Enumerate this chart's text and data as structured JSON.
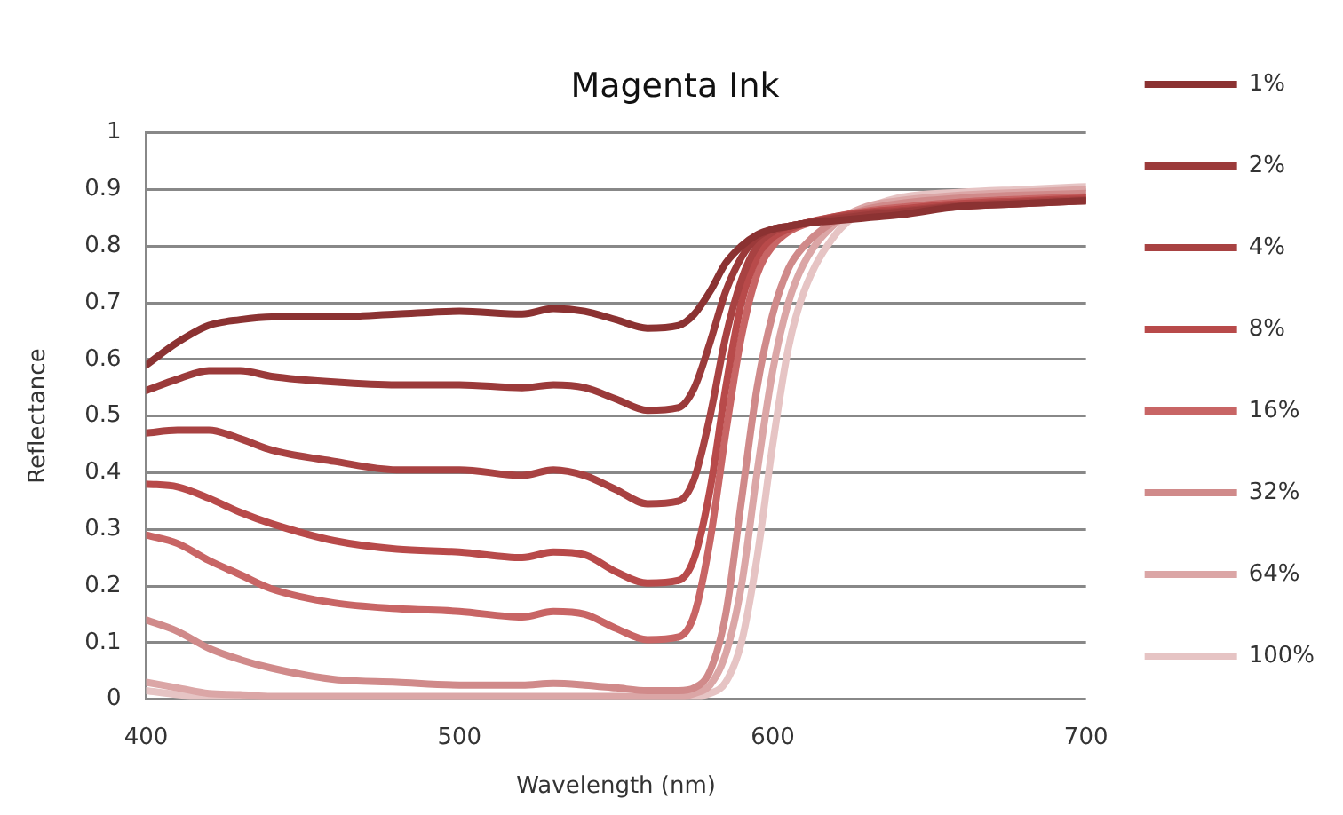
{
  "chart_data": {
    "type": "line",
    "title": "Magenta Ink",
    "xlabel": "Wavelength (nm)",
    "ylabel": "Reflectance",
    "x": [
      400,
      410,
      420,
      430,
      440,
      460,
      480,
      500,
      520,
      530,
      540,
      550,
      560,
      570,
      575,
      580,
      585,
      590,
      595,
      600,
      605,
      610,
      620,
      630,
      640,
      660,
      680,
      700
    ],
    "series": [
      {
        "name": "1%",
        "color": "#8b3232",
        "values": [
          0.59,
          0.63,
          0.66,
          0.67,
          0.675,
          0.675,
          0.68,
          0.685,
          0.68,
          0.69,
          0.685,
          0.67,
          0.655,
          0.66,
          0.68,
          0.72,
          0.77,
          0.8,
          0.82,
          0.83,
          0.835,
          0.84,
          0.845,
          0.85,
          0.855,
          0.87,
          0.875,
          0.88
        ]
      },
      {
        "name": "2%",
        "color": "#9b3a3a",
        "values": [
          0.545,
          0.565,
          0.58,
          0.58,
          0.57,
          0.56,
          0.555,
          0.555,
          0.55,
          0.555,
          0.55,
          0.53,
          0.51,
          0.515,
          0.55,
          0.63,
          0.72,
          0.78,
          0.815,
          0.83,
          0.835,
          0.84,
          0.848,
          0.855,
          0.86,
          0.87,
          0.875,
          0.88
        ]
      },
      {
        "name": "4%",
        "color": "#a84242",
        "values": [
          0.47,
          0.475,
          0.475,
          0.46,
          0.44,
          0.42,
          0.405,
          0.405,
          0.395,
          0.405,
          0.395,
          0.37,
          0.345,
          0.35,
          0.39,
          0.5,
          0.64,
          0.74,
          0.8,
          0.825,
          0.835,
          0.84,
          0.85,
          0.858,
          0.862,
          0.872,
          0.878,
          0.882
        ]
      },
      {
        "name": "8%",
        "color": "#b84a4a",
        "values": [
          0.38,
          0.375,
          0.355,
          0.33,
          0.31,
          0.28,
          0.265,
          0.26,
          0.25,
          0.26,
          0.255,
          0.225,
          0.205,
          0.21,
          0.25,
          0.37,
          0.55,
          0.7,
          0.78,
          0.815,
          0.83,
          0.84,
          0.852,
          0.86,
          0.865,
          0.875,
          0.88,
          0.885
        ]
      },
      {
        "name": "16%",
        "color": "#c86565",
        "values": [
          0.29,
          0.275,
          0.245,
          0.22,
          0.195,
          0.17,
          0.16,
          0.155,
          0.145,
          0.155,
          0.15,
          0.125,
          0.105,
          0.11,
          0.15,
          0.28,
          0.47,
          0.64,
          0.75,
          0.8,
          0.825,
          0.838,
          0.852,
          0.862,
          0.868,
          0.878,
          0.883,
          0.887
        ]
      },
      {
        "name": "32%",
        "color": "#d08a8a",
        "values": [
          0.14,
          0.12,
          0.09,
          0.07,
          0.055,
          0.035,
          0.03,
          0.025,
          0.025,
          0.028,
          0.025,
          0.02,
          0.015,
          0.015,
          0.02,
          0.05,
          0.15,
          0.35,
          0.55,
          0.68,
          0.76,
          0.8,
          0.845,
          0.865,
          0.875,
          0.885,
          0.89,
          0.893
        ]
      },
      {
        "name": "64%",
        "color": "#dba6a6",
        "values": [
          0.03,
          0.02,
          0.01,
          0.008,
          0.005,
          0.005,
          0.005,
          0.005,
          0.005,
          0.005,
          0.005,
          0.005,
          0.005,
          0.005,
          0.01,
          0.025,
          0.08,
          0.2,
          0.4,
          0.58,
          0.7,
          0.77,
          0.84,
          0.87,
          0.88,
          0.89,
          0.895,
          0.9
        ]
      },
      {
        "name": "100%",
        "color": "#e6c4c4",
        "values": [
          0.015,
          0.008,
          0.003,
          0.002,
          0.002,
          0.002,
          0.002,
          0.002,
          0.002,
          0.002,
          0.002,
          0.002,
          0.002,
          0.002,
          0.004,
          0.01,
          0.03,
          0.1,
          0.25,
          0.45,
          0.62,
          0.72,
          0.82,
          0.865,
          0.885,
          0.895,
          0.9,
          0.905
        ]
      }
    ],
    "xlim": [
      400,
      700
    ],
    "xticks": [
      400,
      500,
      600,
      700
    ],
    "ylim": [
      0,
      1
    ],
    "yticks": [
      0,
      0.1,
      0.2,
      0.3,
      0.4,
      0.5,
      0.6,
      0.7,
      0.8,
      0.9,
      1
    ],
    "grid": "y",
    "legend": "right",
    "marker": "none",
    "line_style": "solid"
  }
}
